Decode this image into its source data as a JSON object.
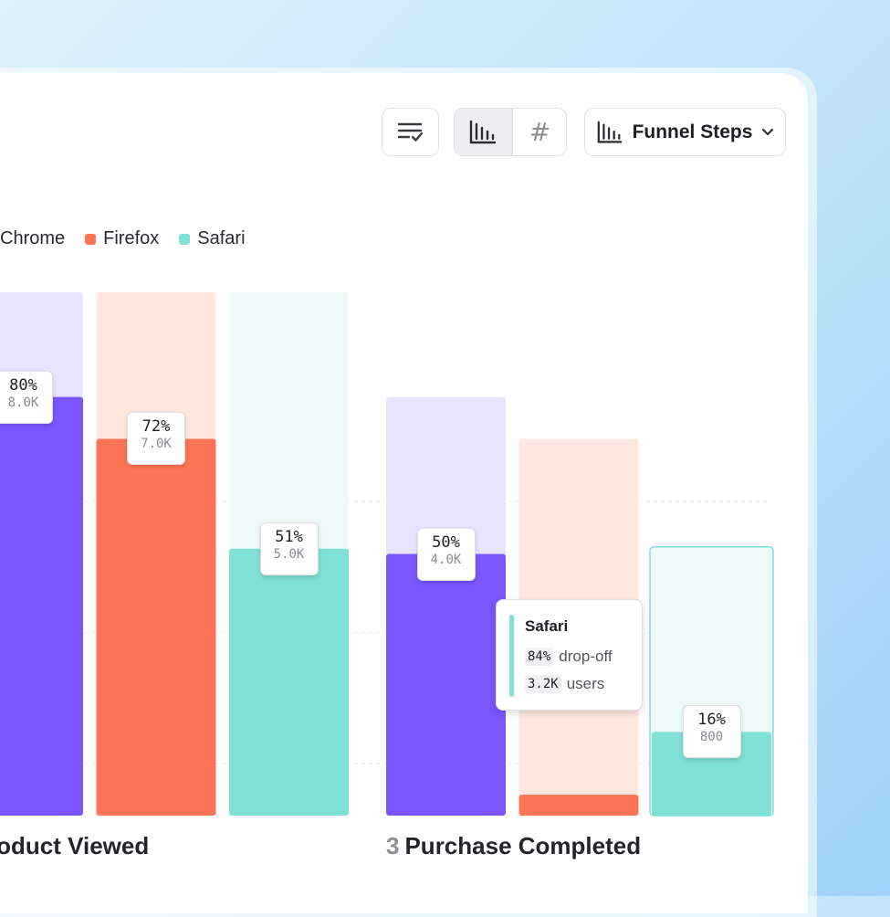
{
  "toolbar": {
    "sort_icon": "sort-check-icon",
    "view_toggle": [
      {
        "name": "bar-chart-icon",
        "active": true
      },
      {
        "name": "hash-icon",
        "active": false
      }
    ],
    "hash_glyph": "#",
    "dropdown": {
      "icon": "bar-chart-icon",
      "label": "Funnel Steps",
      "chevron": "chevron-down-icon"
    }
  },
  "chart_data": {
    "type": "bar",
    "legend": {
      "placement": "top-left"
    },
    "series": [
      {
        "name": "Chrome",
        "color": "#7b55fe",
        "track_color": "#e8e3fe"
      },
      {
        "name": "Firefox",
        "color": "#ff7454",
        "track_color": "#ffe7e0"
      },
      {
        "name": "Safari",
        "color": "#7fe0d6",
        "track_color": "#eefaf8"
      }
    ],
    "steps": [
      {
        "number": "",
        "label": "roduct Viewed",
        "bars": [
          {
            "series": "Chrome",
            "percent": 80,
            "pct_label": "80%",
            "count_label": "8.0K",
            "of": 100
          },
          {
            "series": "Firefox",
            "percent": 72,
            "pct_label": "72%",
            "count_label": "7.0K",
            "of": 100
          },
          {
            "series": "Safari",
            "percent": 51,
            "pct_label": "51%",
            "count_label": "5.0K",
            "of": 100
          }
        ]
      },
      {
        "number": "3",
        "label": "Purchase Completed",
        "bars": [
          {
            "series": "Chrome",
            "percent": 50,
            "pct_label": "50%",
            "count_label": "4.0K",
            "of": 80
          },
          {
            "series": "Firefox",
            "percent": 4,
            "pct_label": "",
            "count_label": "",
            "of": 72
          },
          {
            "series": "Safari",
            "percent": 16,
            "pct_label": "16%",
            "count_label": "800",
            "of": 51,
            "highlighted": true
          }
        ]
      }
    ],
    "ylim": [
      0,
      100
    ],
    "grid": true
  },
  "tooltip": {
    "series": "Safari",
    "dropoff_value": "84%",
    "dropoff_label": "drop-off",
    "users_value": "3.2K",
    "users_label": "users"
  }
}
